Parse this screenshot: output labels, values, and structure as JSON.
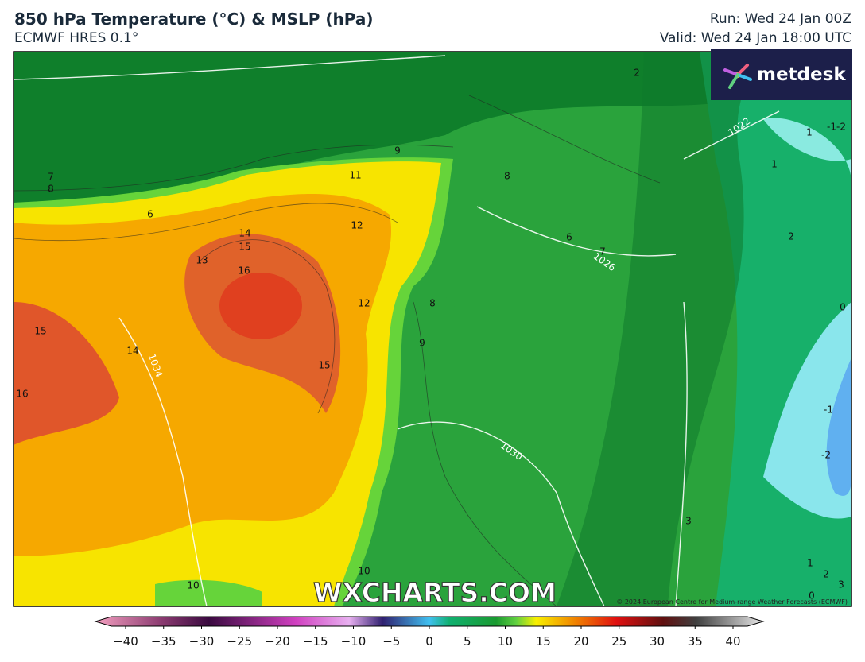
{
  "header": {
    "title": "850 hPa Temperature (°C) & MSLP (hPa)",
    "subtitle": "ECMWF HRES 0.1°",
    "run": "Run: Wed 24 Jan 00Z",
    "valid": "Valid: Wed 24 Jan 18:00 UTC"
  },
  "logo": "metdesk",
  "watermark": "WXCHARTS.COM",
  "copyright": "© 2024 European Centre for Medium-range Weather Forecasts (ECMWF)",
  "map": {
    "contour_labels": [
      "2",
      "1",
      "-1-2",
      "1",
      "9",
      "11",
      "8",
      "7",
      "8",
      "6",
      "12",
      "14",
      "15",
      "13",
      "16",
      "6",
      "7",
      "2",
      "12",
      "8",
      "0",
      "15",
      "9",
      "14",
      "15",
      "16",
      "-1",
      "-2",
      "3",
      "1",
      "10",
      "2",
      "10",
      "3",
      "0"
    ],
    "isobar_labels": [
      "1022",
      "1026",
      "1034",
      "1030"
    ]
  },
  "colorbar": {
    "ticks": [
      "−40",
      "−35",
      "−30",
      "−25",
      "−20",
      "−15",
      "−10",
      "−5",
      "0",
      "5",
      "10",
      "15",
      "20",
      "25",
      "30",
      "35",
      "40"
    ]
  }
}
